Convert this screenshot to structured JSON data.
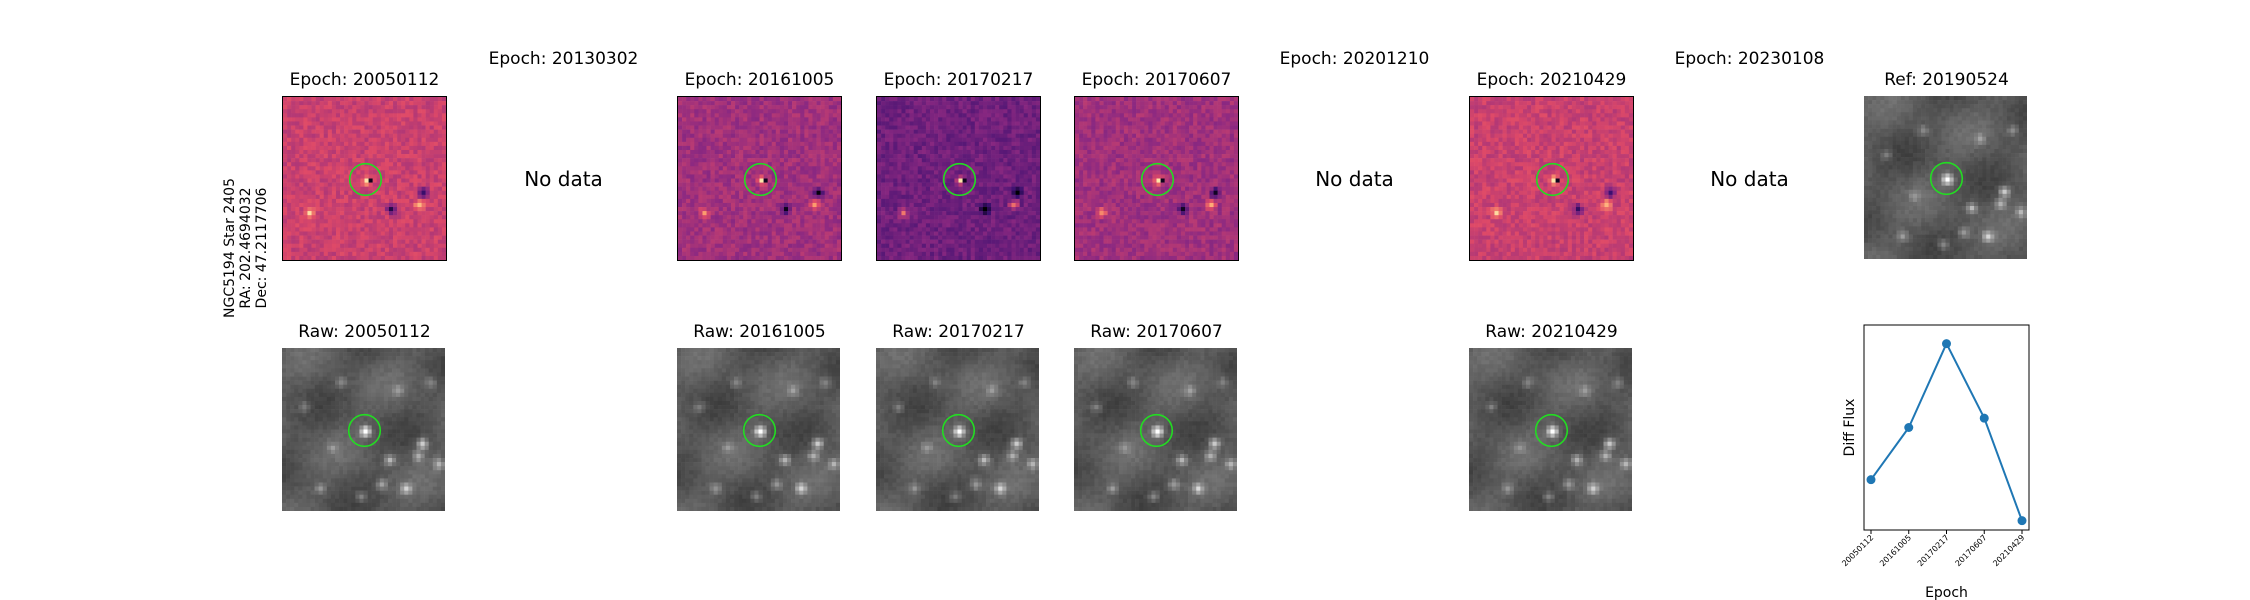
{
  "star_info": {
    "line1": "NGC5194 Star 2405",
    "line2": "RA: 202.4694032",
    "line3": "Dec: 47.2117706"
  },
  "top_row": [
    {
      "title": "Epoch: 20050112",
      "has_data": true,
      "style": "diff-warm"
    },
    {
      "title": "Epoch: 20130302",
      "has_data": false,
      "nodata": "No data"
    },
    {
      "title": "Epoch: 20161005",
      "has_data": true,
      "style": "diff"
    },
    {
      "title": "Epoch: 20170217",
      "has_data": true,
      "style": "diff-dark"
    },
    {
      "title": "Epoch: 20170607",
      "has_data": true,
      "style": "diff"
    },
    {
      "title": "Epoch: 20201210",
      "has_data": false,
      "nodata": "No data"
    },
    {
      "title": "Epoch: 20210429",
      "has_data": true,
      "style": "diff-warm"
    },
    {
      "title": "Epoch: 20230108",
      "has_data": false,
      "nodata": "No data"
    },
    {
      "title": "Ref: 20190524",
      "has_data": true,
      "style": "raw-ref"
    }
  ],
  "bottom_row": [
    {
      "col": 0,
      "title": "Raw: 20050112"
    },
    {
      "col": 2,
      "title": "Raw: 20161005"
    },
    {
      "col": 3,
      "title": "Raw: 20170217"
    },
    {
      "col": 4,
      "title": "Raw: 20170607"
    },
    {
      "col": 6,
      "title": "Raw: 20210429"
    }
  ],
  "colors": {
    "circle": "#22dd22",
    "line": "#1f77b4"
  },
  "chart_data": {
    "type": "line",
    "categories": [
      "20050112",
      "20161005",
      "20170217",
      "20170607",
      "20210429"
    ],
    "values": [
      0.17,
      0.45,
      0.9,
      0.5,
      -0.05
    ],
    "xlabel": "Epoch",
    "ylabel": "Diff Flux",
    "ylim": [
      -0.1,
      1.0
    ],
    "grid": false,
    "y_ticks_shown": false
  }
}
